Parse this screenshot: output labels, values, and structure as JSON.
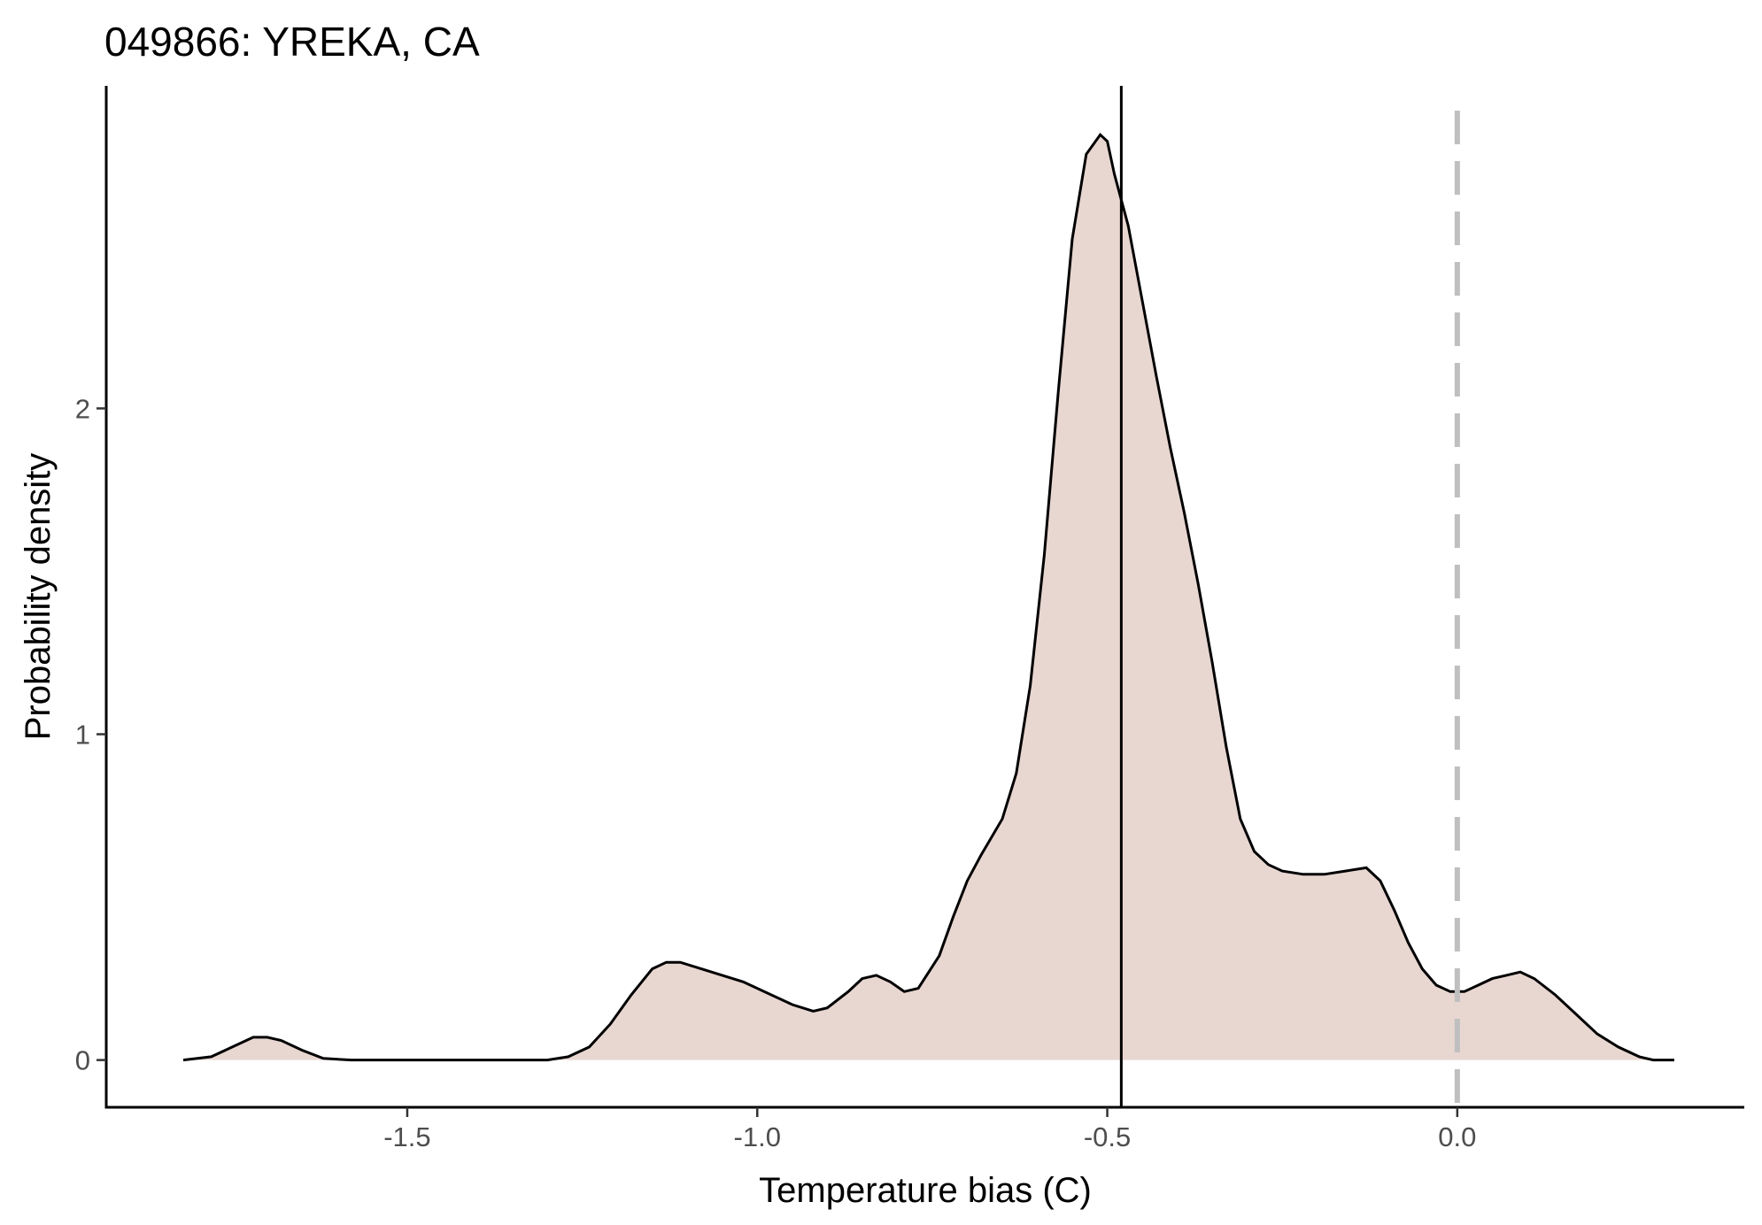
{
  "chart_data": {
    "type": "area",
    "title": "049866: YREKA, CA",
    "xlabel": "Temperature bias (C)",
    "ylabel": "Probability density",
    "xlim": [
      -1.93,
      0.41
    ],
    "ylim": [
      -0.145,
      2.99
    ],
    "x_ticks": [
      -1.5,
      -1.0,
      -0.5,
      0.0
    ],
    "x_tick_labels": [
      "-1.5",
      "-1.0",
      "-0.5",
      "0.0"
    ],
    "y_ticks": [
      0,
      1,
      2
    ],
    "y_tick_labels": [
      "0",
      "1",
      "2"
    ],
    "grid": false,
    "legend": "none",
    "fill_color": "#e8d6d1",
    "line_color": "#000000",
    "reference_lines": {
      "mean_solid_x": -0.48,
      "zero_dashed_x": 0.0,
      "zero_dashed_color": "#bfbfbf"
    },
    "series": [
      {
        "x": [
          -1.82,
          -1.78,
          -1.75,
          -1.72,
          -1.7,
          -1.68,
          -1.65,
          -1.62,
          -1.58,
          -1.5,
          -1.4,
          -1.3,
          -1.27,
          -1.24,
          -1.21,
          -1.18,
          -1.15,
          -1.13,
          -1.11,
          -1.08,
          -1.05,
          -1.02,
          -0.98,
          -0.95,
          -0.92,
          -0.9,
          -0.87,
          -0.85,
          -0.83,
          -0.81,
          -0.79,
          -0.77,
          -0.74,
          -0.72,
          -0.7,
          -0.68,
          -0.65,
          -0.63,
          -0.61,
          -0.59,
          -0.57,
          -0.55,
          -0.53,
          -0.51,
          -0.5,
          -0.49,
          -0.47,
          -0.45,
          -0.43,
          -0.41,
          -0.39,
          -0.37,
          -0.35,
          -0.33,
          -0.31,
          -0.29,
          -0.27,
          -0.25,
          -0.22,
          -0.19,
          -0.16,
          -0.13,
          -0.11,
          -0.09,
          -0.07,
          -0.05,
          -0.03,
          -0.01,
          0.01,
          0.03,
          0.05,
          0.07,
          0.09,
          0.11,
          0.14,
          0.17,
          0.2,
          0.23,
          0.26,
          0.28,
          0.31
        ],
        "y": [
          0.0,
          0.01,
          0.04,
          0.07,
          0.07,
          0.06,
          0.03,
          0.005,
          0.0,
          0.0,
          0.0,
          0.0,
          0.01,
          0.04,
          0.11,
          0.2,
          0.28,
          0.3,
          0.3,
          0.28,
          0.26,
          0.24,
          0.2,
          0.17,
          0.15,
          0.16,
          0.21,
          0.25,
          0.26,
          0.24,
          0.21,
          0.22,
          0.32,
          0.44,
          0.55,
          0.63,
          0.74,
          0.88,
          1.15,
          1.55,
          2.05,
          2.52,
          2.78,
          2.84,
          2.82,
          2.72,
          2.56,
          2.33,
          2.1,
          1.88,
          1.68,
          1.46,
          1.22,
          0.96,
          0.74,
          0.64,
          0.6,
          0.58,
          0.57,
          0.57,
          0.58,
          0.59,
          0.55,
          0.46,
          0.36,
          0.28,
          0.23,
          0.21,
          0.21,
          0.23,
          0.25,
          0.26,
          0.27,
          0.25,
          0.2,
          0.14,
          0.08,
          0.04,
          0.01,
          0.0,
          0.0
        ]
      }
    ]
  }
}
